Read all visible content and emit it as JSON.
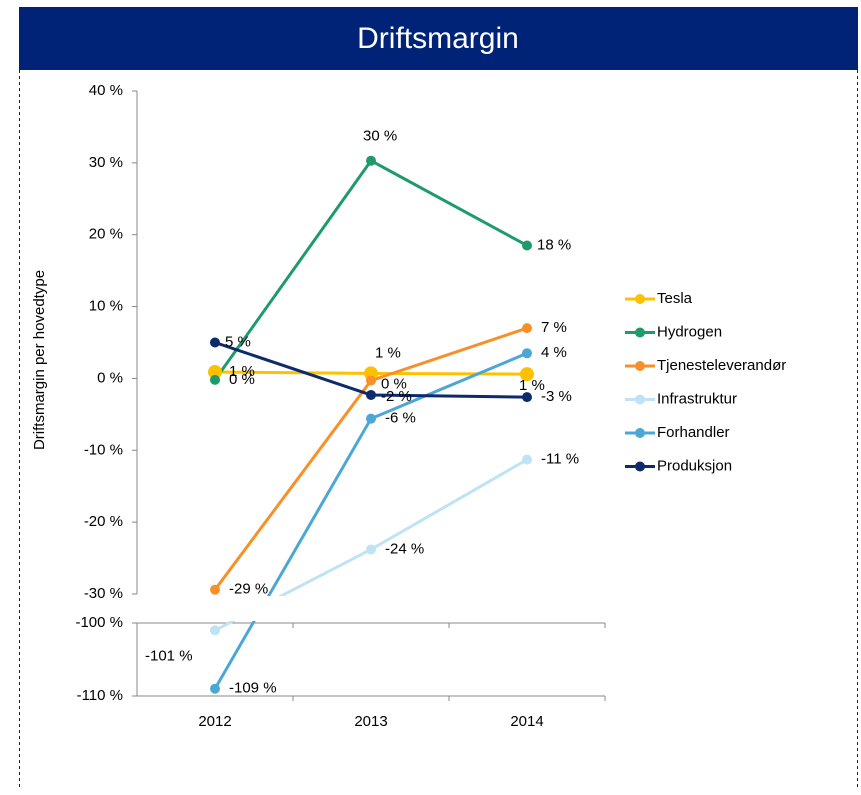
{
  "chart_data": {
    "type": "line",
    "title": "Driftsmargin",
    "ylabel": "Driftsmargin per hovedtype",
    "categories": [
      "2012",
      "2013",
      "2014"
    ],
    "ylim": [
      -30,
      40
    ],
    "yticks": [
      {
        "value": -30,
        "label": "-30 %"
      },
      {
        "value": -20,
        "label": "-20 %"
      },
      {
        "value": -10,
        "label": "-10 %"
      },
      {
        "value": 0,
        "label": "0 %"
      },
      {
        "value": 10,
        "label": "10 %"
      },
      {
        "value": 20,
        "label": "20 %"
      },
      {
        "value": 30,
        "label": "30 %"
      },
      {
        "value": 40,
        "label": "40 %"
      }
    ],
    "ylim_lower": [
      -110,
      -100
    ],
    "yticks_lower": [
      {
        "value": -110,
        "label": "-110 %"
      },
      {
        "value": -100,
        "label": "-100 %"
      }
    ],
    "legend": "right",
    "series": [
      {
        "name": "Tesla",
        "color": "#ffc000",
        "values": [
          0.9,
          0.7,
          0.6
        ],
        "value_labels": [
          "1 %",
          "1 %",
          "1 %"
        ]
      },
      {
        "name": "Hydrogen",
        "color": "#1f9b6b",
        "values": [
          -0.2,
          30.3,
          18.5
        ],
        "value_labels": [
          "0 %",
          "30 %",
          "18 %"
        ]
      },
      {
        "name": "Tjenesteleverandør",
        "color": "#f79029",
        "values": [
          -29.4,
          -0.3,
          7
        ],
        "value_labels": [
          "-29 %",
          "0 %",
          "7 %"
        ]
      },
      {
        "name": "Infrastruktur",
        "color": "#bfe3f5",
        "values": [
          -101,
          -23.8,
          -11.3
        ],
        "value_labels": [
          "-101 %",
          "-24 %",
          "-11 %"
        ]
      },
      {
        "name": "Forhandler",
        "color": "#4ba7d6",
        "values": [
          -109,
          -5.6,
          3.5
        ],
        "value_labels": [
          "-109 %",
          "-6 %",
          "4 %"
        ]
      },
      {
        "name": "Produksjon",
        "color": "#0d2a6c",
        "values": [
          5,
          -2.3,
          -2.6
        ],
        "value_labels": [
          "5 %",
          "-2 %",
          "-3 %"
        ]
      }
    ]
  }
}
